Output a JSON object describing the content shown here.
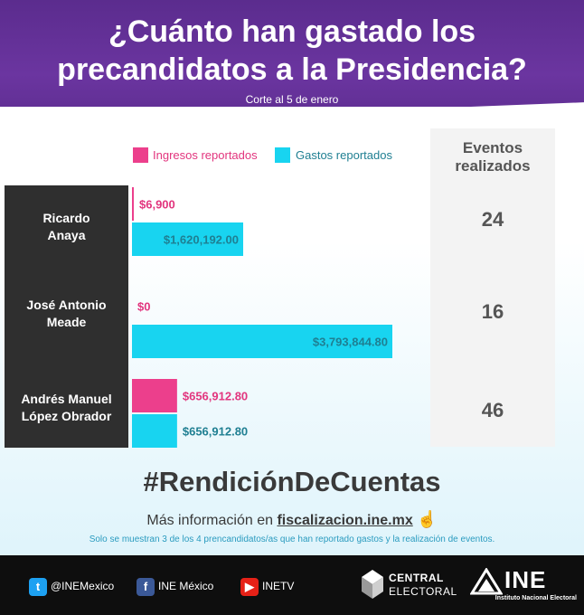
{
  "header": {
    "title": "¿Cuánto han gastado los precandidatos a la Presidencia?",
    "subtitle": "Corte al 5 de enero"
  },
  "legend": {
    "ingresos": "Ingresos reportados",
    "gastos": "Gastos reportados"
  },
  "events_column": {
    "title": "Eventos realizados"
  },
  "colors": {
    "ingresos": "#ec3f8c",
    "gastos": "#18d4f0",
    "header": "#5b2c8e"
  },
  "chart_data": {
    "type": "bar",
    "orientation": "horizontal",
    "categories": [
      "Ricardo Anaya",
      "José Antonio Meade",
      "Andrés Manuel López Obrador"
    ],
    "series": [
      {
        "name": "Ingresos reportados",
        "values": [
          6900,
          0,
          656912.8
        ],
        "labels": [
          "$6,900",
          "$0",
          "$656,912.80"
        ]
      },
      {
        "name": "Gastos reportados",
        "values": [
          1620192.0,
          3793844.8,
          656912.8
        ],
        "labels": [
          "$1,620,192.00",
          "$3,793,844.80",
          "$656,912.80"
        ]
      }
    ],
    "events": [
      "24",
      "16",
      "46"
    ],
    "xmax": 3793844.8,
    "grid": false
  },
  "footer_text": {
    "hashtag": "#RendiciónDeCuentas",
    "more_info_prefix": "Más información en",
    "more_info_link": "fiscalizacion.ine.mx",
    "note": "Solo se muestran 3 de los 4 prencandidatos/as que han reportado gastos y la realización de eventos."
  },
  "footer": {
    "twitter": "@INEMexico",
    "facebook": "INE México",
    "youtube": "INETV",
    "central_line1": "CENTRAL",
    "central_line2": "ELECTORAL",
    "ine_logo": "INE",
    "ine_sub": "Instituto Nacional Electoral"
  }
}
